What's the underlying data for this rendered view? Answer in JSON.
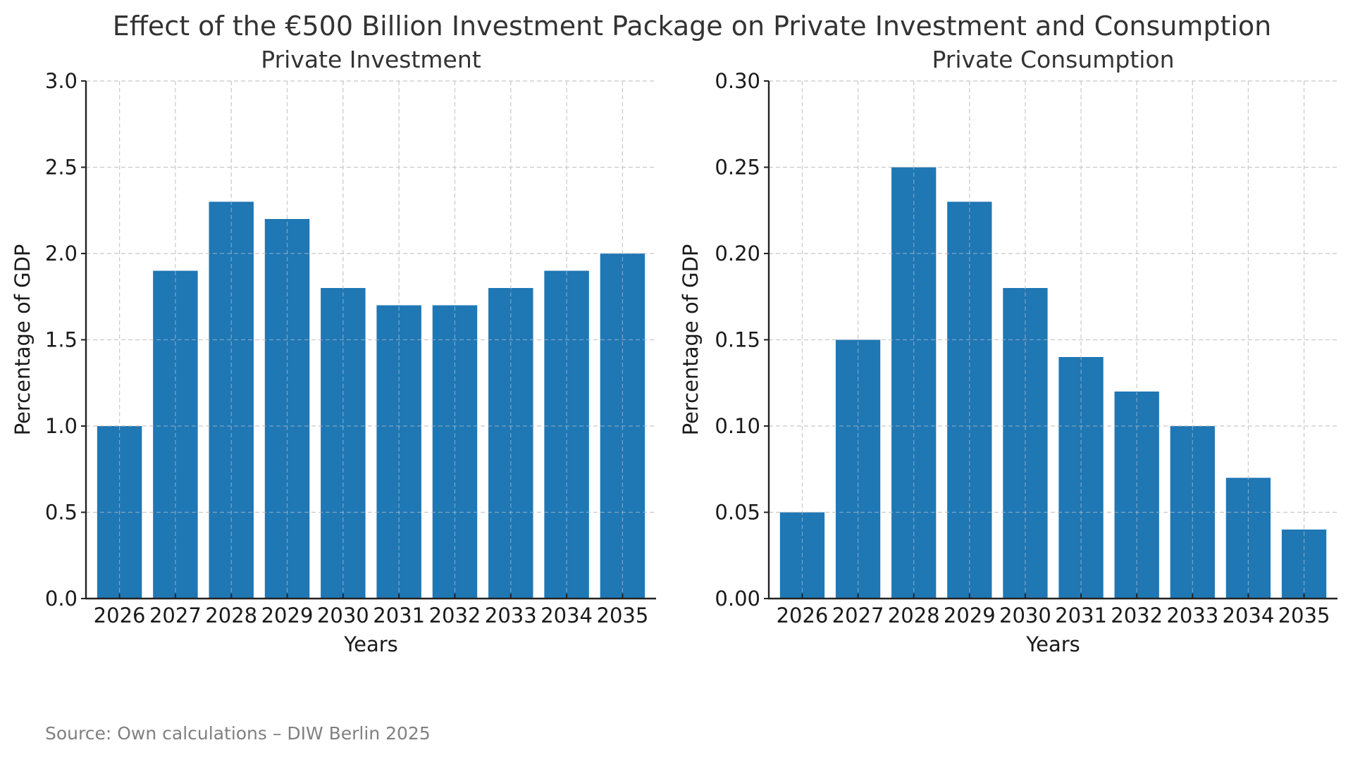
{
  "figure": {
    "title": "Effect of the €500 Billion Investment Package on Private Investment and Consumption",
    "source": "Source: Own calculations – DIW Berlin 2025",
    "bar_color": "#1f77b4"
  },
  "chart_data": [
    {
      "type": "bar",
      "title": "Private Investment",
      "xlabel": "Years",
      "ylabel": "Percentage of GDP",
      "categories": [
        "2026",
        "2027",
        "2028",
        "2029",
        "2030",
        "2031",
        "2032",
        "2033",
        "2034",
        "2035"
      ],
      "values": [
        1.0,
        1.9,
        2.3,
        2.2,
        1.8,
        1.7,
        1.7,
        1.8,
        1.9,
        2.0
      ],
      "ylim": [
        0,
        3.0
      ],
      "yticks": [
        "0.0",
        "0.5",
        "1.0",
        "1.5",
        "2.0",
        "2.5",
        "3.0"
      ],
      "ytick_values": [
        0,
        0.5,
        1.0,
        1.5,
        2.0,
        2.5,
        3.0
      ],
      "grid": true
    },
    {
      "type": "bar",
      "title": "Private Consumption",
      "xlabel": "Years",
      "ylabel": "Percentage of GDP",
      "categories": [
        "2026",
        "2027",
        "2028",
        "2029",
        "2030",
        "2031",
        "2032",
        "2033",
        "2034",
        "2035"
      ],
      "values": [
        0.05,
        0.15,
        0.25,
        0.23,
        0.18,
        0.14,
        0.12,
        0.1,
        0.07,
        0.04
      ],
      "ylim": [
        0,
        0.3
      ],
      "yticks": [
        "0.00",
        "0.05",
        "0.10",
        "0.15",
        "0.20",
        "0.25",
        "0.30"
      ],
      "ytick_values": [
        0,
        0.05,
        0.1,
        0.15,
        0.2,
        0.25,
        0.3
      ],
      "grid": true
    }
  ]
}
